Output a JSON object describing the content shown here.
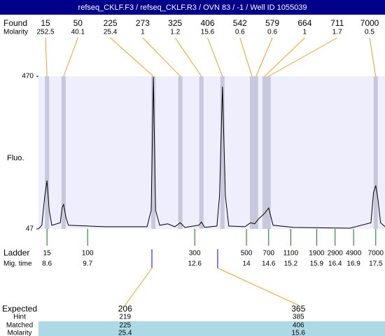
{
  "header": {
    "title": "refseq_CKLF.F3 / refseq_CKLF.R3 / OVN 83 / -1 / Well ID 1055039"
  },
  "chart_data": {
    "type": "line",
    "y_label": "Fluo.",
    "ylim": [
      47,
      470
    ],
    "yticks": [
      47,
      470
    ],
    "xlim": [
      8.37,
      17.75
    ],
    "series": [
      {
        "color": "#000000",
        "x": [
          8.37,
          8.46,
          8.54,
          8.6,
          8.66,
          8.73,
          8.96,
          9.01,
          9.05,
          9.11,
          9.18,
          10.17,
          11.31,
          11.42,
          11.48,
          11.54,
          11.65,
          11.87,
          12.06,
          12.21,
          12.33,
          12.71,
          12.78,
          12.87,
          13.2,
          13.27,
          13.35,
          13.43,
          13.52,
          13.96,
          14.11,
          14.22,
          14.34,
          14.49,
          14.6,
          14.72,
          15.28,
          16.8,
          17.37,
          17.44,
          17.5,
          17.56,
          17.63,
          17.75
        ],
        "values": [
          47,
          57,
          138,
          181,
          99,
          57,
          64,
          107,
          115,
          80,
          57,
          53,
          53,
          99,
          468,
          99,
          57,
          61,
          53,
          64,
          51,
          57,
          66,
          51,
          55,
          138,
          441,
          138,
          55,
          53,
          64,
          61,
          76,
          90,
          105,
          57,
          51,
          49,
          64,
          148,
          167,
          128,
          64,
          53
        ]
      }
    ],
    "found": {
      "label": "Found",
      "molarity_label": "Molarity",
      "peaks": [
        {
          "size": 15,
          "molarity": 252.5,
          "mig_time": 8.6
        },
        {
          "size": 50,
          "molarity": 40.1,
          "mig_time": 9.05
        },
        {
          "size": 225,
          "molarity": 25.4,
          "mig_time": 11.48
        },
        {
          "size": 273,
          "molarity": 1,
          "mig_time": 12.21
        },
        {
          "size": 325,
          "molarity": 1.2,
          "mig_time": 12.78
        },
        {
          "size": 406,
          "molarity": 15.6,
          "mig_time": 13.35
        },
        {
          "size": 542,
          "molarity": 0.6,
          "mig_time": 14.15
        },
        {
          "size": 579,
          "molarity": 0.6,
          "mig_time": 14.26
        },
        {
          "size": 664,
          "molarity": 1,
          "mig_time": 14.49
        },
        {
          "size": 711,
          "molarity": 1.7,
          "mig_time": 14.6
        },
        {
          "size": 7000,
          "molarity": 0.5,
          "mig_time": 17.5
        }
      ]
    },
    "ladder": {
      "label": "Ladder",
      "mig_time_label": "Mig. time",
      "peaks": [
        {
          "size": 15,
          "mig_time": 8.6
        },
        {
          "size": 100,
          "mig_time": 9.7
        },
        {
          "size": 300,
          "mig_time": 12.6
        },
        {
          "size": 500,
          "mig_time": 14
        },
        {
          "size": 700,
          "mig_time": 14.6
        },
        {
          "size": 1100,
          "mig_time": 15.2
        },
        {
          "size": 1900,
          "mig_time": 15.9
        },
        {
          "size": 2900,
          "mig_time": 16.4
        },
        {
          "size": 4900,
          "mig_time": 16.9
        },
        {
          "size": 7000,
          "mig_time": 17.5
        }
      ]
    },
    "expected": {
      "labels": [
        "Expected",
        "Hint",
        "Matched",
        "Molarity"
      ],
      "peaks": [
        {
          "expected": 206,
          "hint": 219,
          "matched": 225,
          "molarity": 25.4,
          "mig_time": 11.44
        },
        {
          "expected": 365,
          "hint": 385,
          "matched": 406,
          "molarity": 15.6,
          "mig_time": 13.22
        }
      ]
    }
  }
}
